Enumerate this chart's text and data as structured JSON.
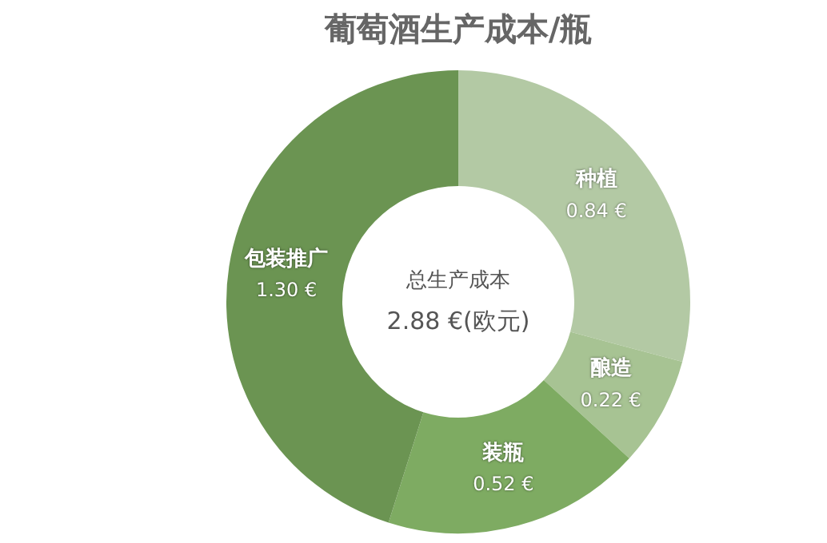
{
  "chart_data": {
    "type": "donut",
    "title": "葡萄酒生产成本/瓶",
    "categories": [
      "种植",
      "酿造",
      "装瓶",
      "包装推广"
    ],
    "values": [
      0.84,
      0.22,
      0.52,
      1.3
    ],
    "value_labels": [
      "0.84 €",
      "0.22 €",
      "0.52 €",
      "1.30 €"
    ],
    "colors": [
      "#b3c9a4",
      "#a7c393",
      "#7eab62",
      "#6b9452"
    ],
    "annotations": [
      "总生产成本",
      "2.88 €(欧元)"
    ],
    "legend": false
  }
}
